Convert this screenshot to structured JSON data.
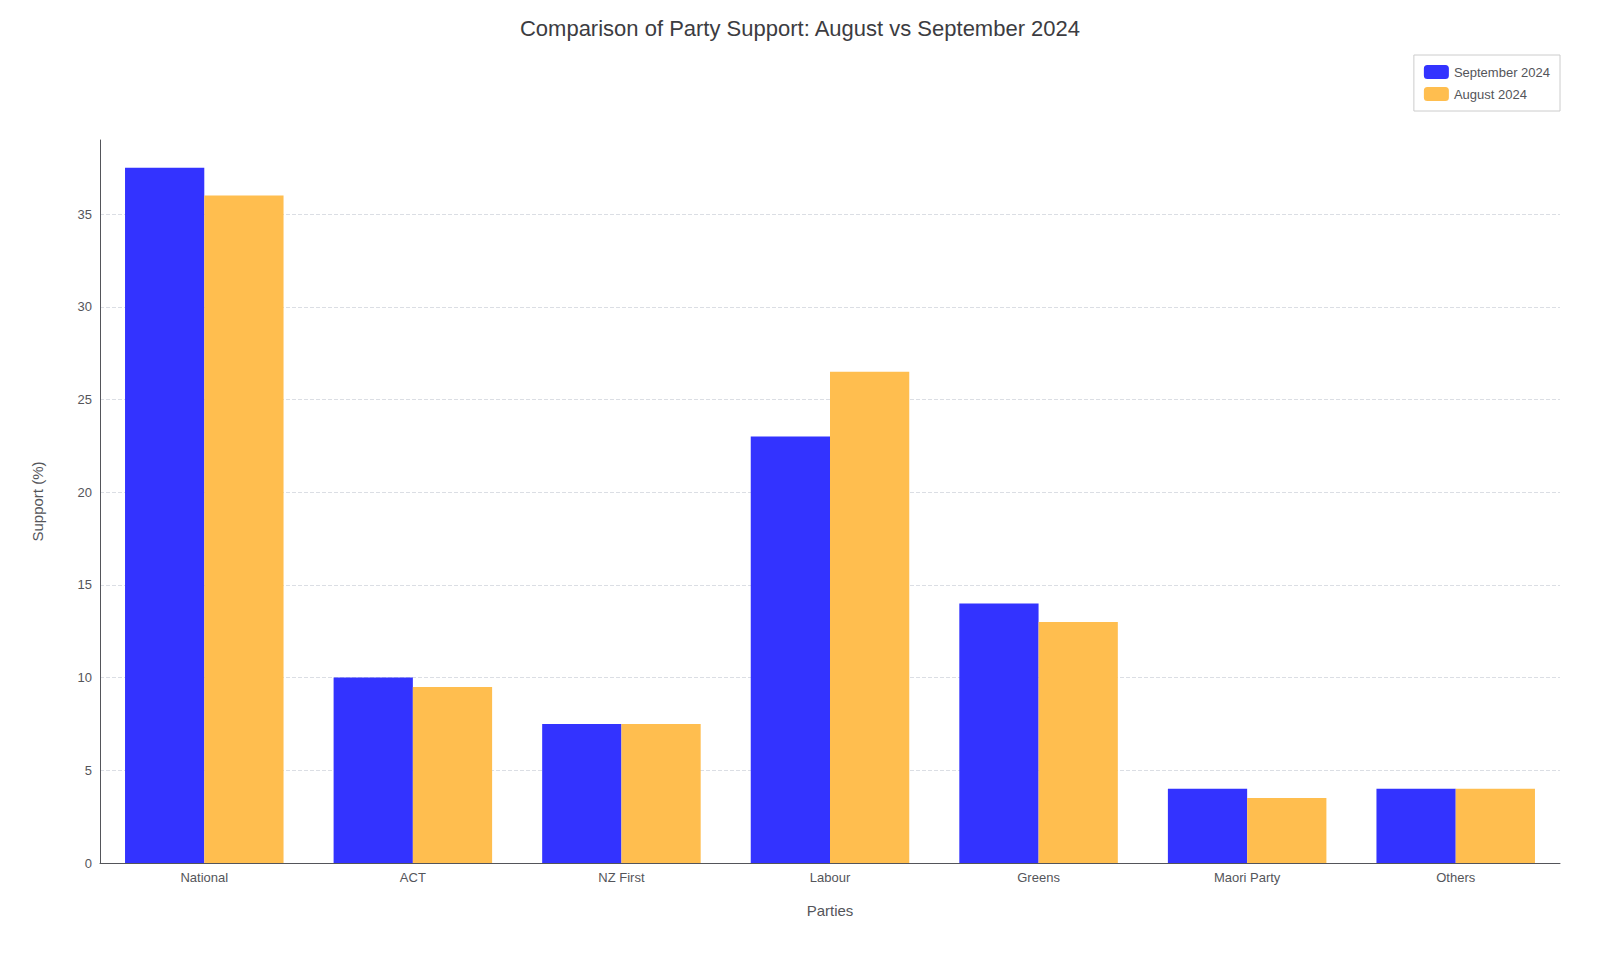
{
  "chart_data": {
    "type": "bar",
    "title": "Comparison of Party Support: August vs September 2024",
    "xlabel": "Parties",
    "ylabel": "Support (%)",
    "categories": [
      "National",
      "ACT",
      "NZ First",
      "Labour",
      "Greens",
      "Maori Party",
      "Others"
    ],
    "series": [
      {
        "name": "September 2024",
        "color": "#3333ff",
        "values": [
          37.5,
          10.0,
          7.5,
          23.0,
          14.0,
          4.0,
          4.0
        ]
      },
      {
        "name": "August 2024",
        "color": "#ffbe4f",
        "values": [
          36.0,
          9.5,
          7.5,
          26.5,
          13.0,
          3.5,
          4.0
        ]
      }
    ],
    "ylim": [
      0,
      39
    ],
    "yticks": [
      0,
      5,
      10,
      15,
      20,
      25,
      30,
      35
    ],
    "grid": true,
    "legend": "upper right"
  }
}
